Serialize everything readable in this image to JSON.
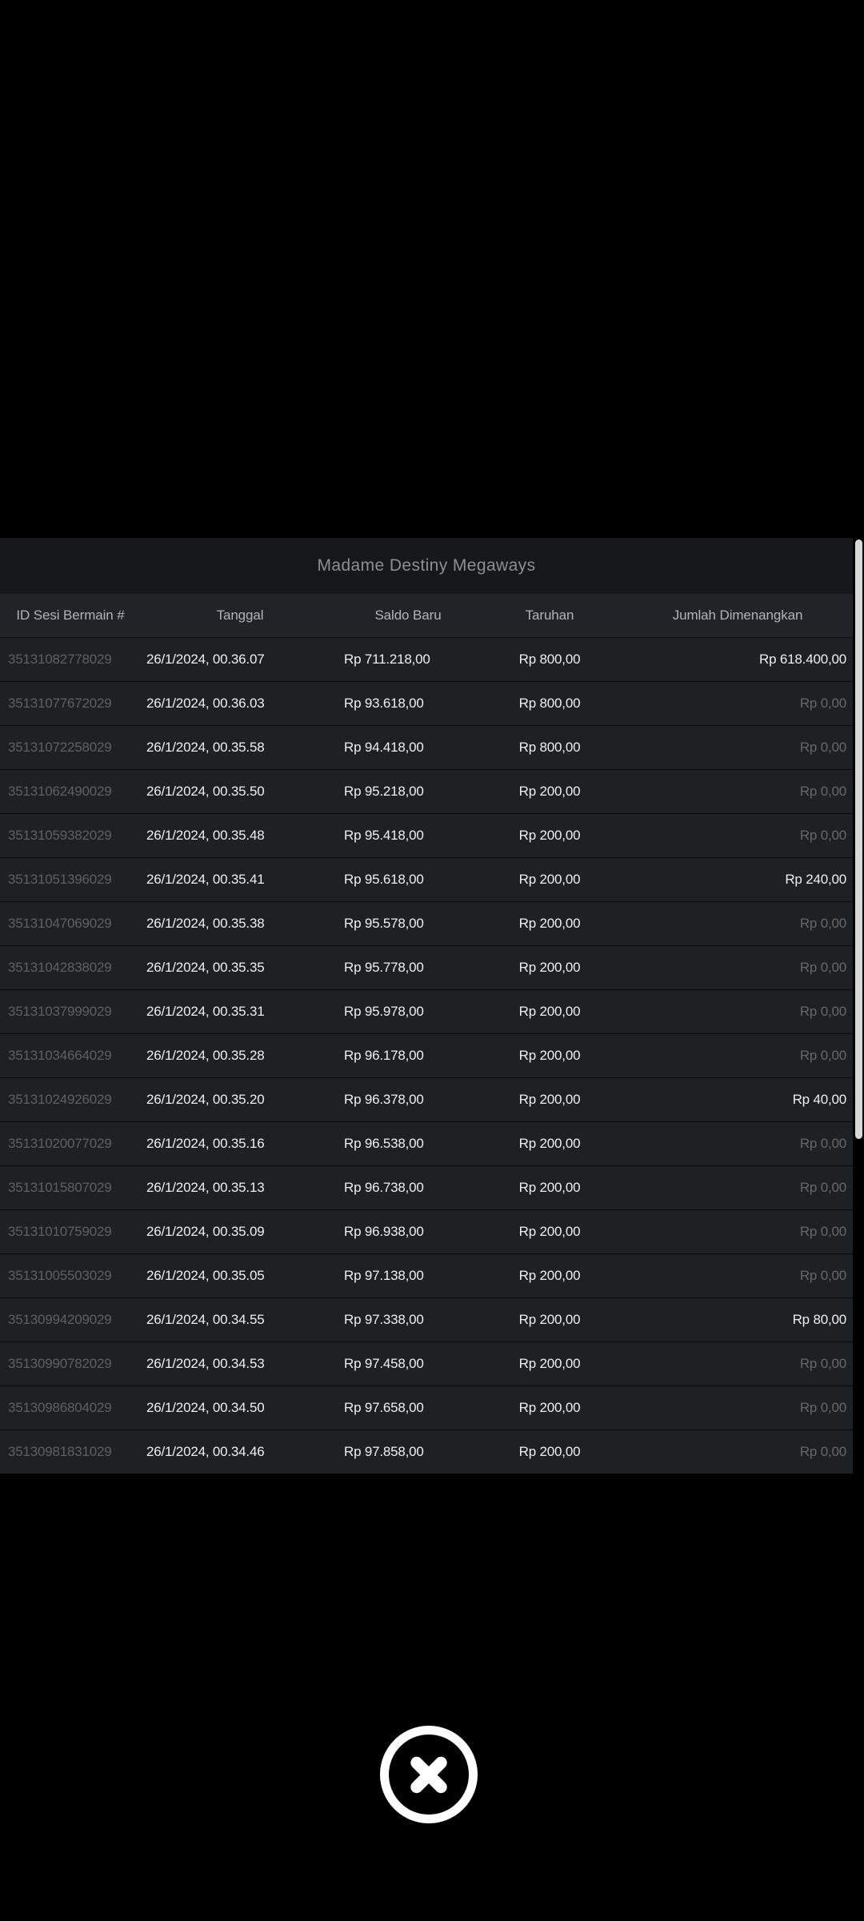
{
  "modal": {
    "title": "Madame Destiny Megaways"
  },
  "table": {
    "headers": [
      "ID Sesi Bermain #",
      "Tanggal",
      "Saldo Baru",
      "Taruhan",
      "Jumlah Dimenangkan"
    ],
    "zero_value": "Rp 0,00",
    "rows": [
      {
        "id": "35131082778029",
        "date": "26/1/2024, 00.36.07",
        "balance": "Rp 711.218,00",
        "bet": "Rp 800,00",
        "win": "Rp 618.400,00"
      },
      {
        "id": "35131077672029",
        "date": "26/1/2024, 00.36.03",
        "balance": "Rp 93.618,00",
        "bet": "Rp 800,00",
        "win": "Rp 0,00"
      },
      {
        "id": "35131072258029",
        "date": "26/1/2024, 00.35.58",
        "balance": "Rp 94.418,00",
        "bet": "Rp 800,00",
        "win": "Rp 0,00"
      },
      {
        "id": "35131062490029",
        "date": "26/1/2024, 00.35.50",
        "balance": "Rp 95.218,00",
        "bet": "Rp 200,00",
        "win": "Rp 0,00"
      },
      {
        "id": "35131059382029",
        "date": "26/1/2024, 00.35.48",
        "balance": "Rp 95.418,00",
        "bet": "Rp 200,00",
        "win": "Rp 0,00"
      },
      {
        "id": "35131051396029",
        "date": "26/1/2024, 00.35.41",
        "balance": "Rp 95.618,00",
        "bet": "Rp 200,00",
        "win": "Rp 240,00"
      },
      {
        "id": "35131047069029",
        "date": "26/1/2024, 00.35.38",
        "balance": "Rp 95.578,00",
        "bet": "Rp 200,00",
        "win": "Rp 0,00"
      },
      {
        "id": "35131042838029",
        "date": "26/1/2024, 00.35.35",
        "balance": "Rp 95.778,00",
        "bet": "Rp 200,00",
        "win": "Rp 0,00"
      },
      {
        "id": "35131037999029",
        "date": "26/1/2024, 00.35.31",
        "balance": "Rp 95.978,00",
        "bet": "Rp 200,00",
        "win": "Rp 0,00"
      },
      {
        "id": "35131034664029",
        "date": "26/1/2024, 00.35.28",
        "balance": "Rp 96.178,00",
        "bet": "Rp 200,00",
        "win": "Rp 0,00"
      },
      {
        "id": "35131024926029",
        "date": "26/1/2024, 00.35.20",
        "balance": "Rp 96.378,00",
        "bet": "Rp 200,00",
        "win": "Rp 40,00"
      },
      {
        "id": "35131020077029",
        "date": "26/1/2024, 00.35.16",
        "balance": "Rp 96.538,00",
        "bet": "Rp 200,00",
        "win": "Rp 0,00"
      },
      {
        "id": "35131015807029",
        "date": "26/1/2024, 00.35.13",
        "balance": "Rp 96.738,00",
        "bet": "Rp 200,00",
        "win": "Rp 0,00"
      },
      {
        "id": "35131010759029",
        "date": "26/1/2024, 00.35.09",
        "balance": "Rp 96.938,00",
        "bet": "Rp 200,00",
        "win": "Rp 0,00"
      },
      {
        "id": "35131005503029",
        "date": "26/1/2024, 00.35.05",
        "balance": "Rp 97.138,00",
        "bet": "Rp 200,00",
        "win": "Rp 0,00"
      },
      {
        "id": "35130994209029",
        "date": "26/1/2024, 00.34.55",
        "balance": "Rp 97.338,00",
        "bet": "Rp 200,00",
        "win": "Rp 80,00"
      },
      {
        "id": "35130990782029",
        "date": "26/1/2024, 00.34.53",
        "balance": "Rp 97.458,00",
        "bet": "Rp 200,00",
        "win": "Rp 0,00"
      },
      {
        "id": "35130986804029",
        "date": "26/1/2024, 00.34.50",
        "balance": "Rp 97.658,00",
        "bet": "Rp 200,00",
        "win": "Rp 0,00"
      },
      {
        "id": "35130981831029",
        "date": "26/1/2024, 00.34.46",
        "balance": "Rp 97.858,00",
        "bet": "Rp 200,00",
        "win": "Rp 0,00"
      }
    ]
  },
  "colors": {
    "page_bg": "#000000",
    "titlebar_bg": "#16181c",
    "header_bg": "#202428",
    "row_bg": "#1d2124",
    "row_divider": "#0a0b0c",
    "text_white": "#edeff0",
    "text_muted": "#5a6065",
    "scrollbar_thumb": "#d6d8da",
    "close_icon": "#ffffff"
  }
}
